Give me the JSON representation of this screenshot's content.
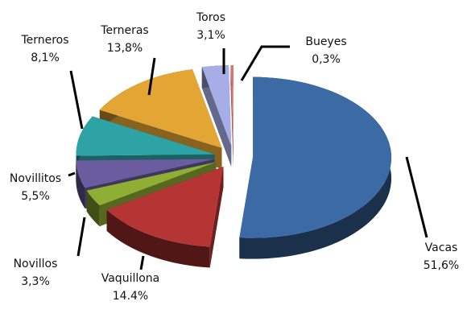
{
  "chart_data": {
    "type": "pie3d",
    "categories": [
      "Vacas",
      "Vaquillona",
      "Novillos",
      "Novillitos",
      "Terneros",
      "Terneras",
      "Toros",
      "Bueyes"
    ],
    "values": [
      51.6,
      14.4,
      3.3,
      5.5,
      8.1,
      13.8,
      3.1,
      0.3
    ],
    "value_labels": [
      "51,6%",
      "14.4%",
      "3,3%",
      "5,5%",
      "8,1%",
      "13,8%",
      "3,1%",
      "0,3%"
    ],
    "colors": [
      "#3b6aa5",
      "#b53434",
      "#8fae34",
      "#6a5c9e",
      "#2ea3a5",
      "#e3a534",
      "#a7ade6",
      "#e27272"
    ]
  }
}
